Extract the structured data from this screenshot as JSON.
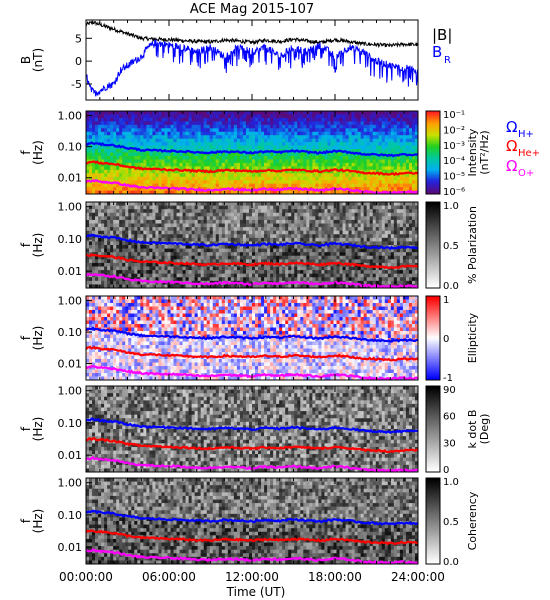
{
  "chart_data": {
    "type": "multi-panel-spectrogram",
    "title": "ACE Mag 2015-107",
    "xlabel": "Time (UT)",
    "x_ticks": [
      "00:00:00",
      "06:00:00",
      "12:00:00",
      "18:00:00",
      "24:00:00"
    ],
    "xlim_hours": [
      0,
      24
    ],
    "panels": [
      {
        "id": "b-field",
        "type": "line",
        "ylabel_main": "B",
        "ylabel_unit": "(nT)",
        "y_ticks": [
          "5",
          "0",
          "-5"
        ],
        "ylim": [
          -8.5,
          9
        ],
        "series": [
          {
            "name": "|B|",
            "color": "#000000",
            "hours": [
              0,
              0.5,
              1,
              1.5,
              2,
              2.5,
              3,
              3.5,
              4,
              5,
              6,
              7,
              8,
              9,
              10,
              11,
              12,
              13,
              14,
              15,
              16,
              17,
              18,
              19,
              20,
              21,
              22,
              23,
              24
            ],
            "values": [
              8,
              8.5,
              8,
              7.5,
              7,
              6.5,
              6,
              5.5,
              5,
              4.8,
              4.7,
              4.5,
              4.3,
              4.2,
              4.6,
              4.4,
              4.1,
              4.6,
              4.3,
              4.8,
              4.4,
              4.1,
              4.7,
              4.3,
              3.8,
              3.6,
              3.4,
              3.7,
              3.6
            ]
          },
          {
            "name": "B",
            "name_sub": "R",
            "color": "#0000ff",
            "hours": [
              0,
              0.3,
              0.6,
              1,
              1.5,
              2,
              2.5,
              3,
              3.5,
              4,
              4.5,
              5,
              6,
              7,
              8,
              9,
              10,
              11,
              12,
              13,
              14,
              15,
              16,
              17,
              18,
              19,
              20,
              21,
              22,
              23,
              24
            ],
            "values": [
              -3,
              -6,
              -7,
              -6.5,
              -5.5,
              -5,
              -2,
              -1,
              0,
              1,
              3,
              4,
              3.5,
              3,
              2,
              3,
              1,
              3,
              2,
              3,
              1,
              3,
              2,
              3.5,
              1,
              3,
              2,
              0,
              -1,
              -1.5,
              -2
            ]
          }
        ]
      },
      {
        "id": "intensity",
        "type": "heatmap",
        "ylabel_main": "f",
        "ylabel_unit": "(Hz)",
        "y_ticks": [
          "1.00",
          "0.10",
          "0.01"
        ],
        "colorbar_title": "Intensity",
        "colorbar_unit": "(nT²/Hz)",
        "colorbar_ticks": [
          "10⁻¹",
          "10⁻²",
          "10⁻³",
          "10⁻⁴",
          "10⁻⁵",
          "10⁻⁶"
        ],
        "colorbar_scale": [
          "#5a0a7a",
          "#2222dd",
          "#00b0f0",
          "#00c8a0",
          "#20d020",
          "#c8e000",
          "#ffa000",
          "#ff2020"
        ]
      },
      {
        "id": "polarization",
        "type": "heatmap",
        "ylabel_main": "f",
        "ylabel_unit": "(Hz)",
        "y_ticks": [
          "1.00",
          "0.10",
          "0.01"
        ],
        "colorbar_title": "% Polarization",
        "colorbar_ticks": [
          "1.0",
          "0.5",
          "0.0"
        ],
        "colorbar_scale": [
          "#ffffff",
          "#000000"
        ]
      },
      {
        "id": "ellipticity",
        "type": "heatmap",
        "ylabel_main": "f",
        "ylabel_unit": "(Hz)",
        "y_ticks": [
          "1.00",
          "0.10",
          "0.01"
        ],
        "colorbar_title": "Ellipticity",
        "colorbar_ticks": [
          "1",
          "0",
          "-1"
        ],
        "colorbar_scale": [
          "#0000ff",
          "#ffffff",
          "#ff0000"
        ]
      },
      {
        "id": "k-dot-b",
        "type": "heatmap",
        "ylabel_main": "f",
        "ylabel_unit": "(Hz)",
        "y_ticks": [
          "1.00",
          "0.10",
          "0.01"
        ],
        "colorbar_title": "k dot B",
        "colorbar_unit": "(Deg)",
        "colorbar_ticks": [
          "90",
          "60",
          "30",
          "0"
        ],
        "colorbar_scale": [
          "#ffffff",
          "#000000"
        ]
      },
      {
        "id": "coherency",
        "type": "heatmap",
        "ylabel_main": "f",
        "ylabel_unit": "(Hz)",
        "y_ticks": [
          "1.00",
          "0.10",
          "0.01"
        ],
        "colorbar_title": "Coherency",
        "colorbar_ticks": [
          "1.0",
          "0.5",
          "0.0"
        ],
        "colorbar_scale": [
          "#ffffff",
          "#000000"
        ]
      }
    ],
    "gyrofrequency_curves": {
      "hours": [
        0,
        0.5,
        1,
        1.5,
        2,
        2.5,
        3,
        3.5,
        4,
        5,
        6,
        7,
        8,
        9,
        10,
        11,
        12,
        13,
        14,
        15,
        16,
        17,
        18,
        19,
        20,
        21,
        22,
        23,
        24
      ],
      "series": [
        {
          "label": "Ω",
          "sub": "H+",
          "color": "#0000ff",
          "values": [
            0.12,
            0.13,
            0.12,
            0.115,
            0.11,
            0.1,
            0.09,
            0.085,
            0.078,
            0.075,
            0.073,
            0.07,
            0.066,
            0.064,
            0.07,
            0.067,
            0.063,
            0.07,
            0.066,
            0.073,
            0.067,
            0.063,
            0.072,
            0.066,
            0.058,
            0.055,
            0.052,
            0.056,
            0.055
          ]
        },
        {
          "label": "Ω",
          "sub": "He+",
          "color": "#ff0000",
          "values": [
            0.03,
            0.0325,
            0.03,
            0.029,
            0.0275,
            0.025,
            0.0225,
            0.021,
            0.0195,
            0.019,
            0.018,
            0.0175,
            0.0165,
            0.016,
            0.0175,
            0.017,
            0.016,
            0.0175,
            0.0165,
            0.018,
            0.017,
            0.016,
            0.018,
            0.0165,
            0.0145,
            0.014,
            0.013,
            0.014,
            0.014
          ]
        },
        {
          "label": "Ω",
          "sub": "O+",
          "color": "#ff00ff",
          "values": [
            0.0075,
            0.0081,
            0.0075,
            0.0072,
            0.0069,
            0.0063,
            0.0056,
            0.0053,
            0.0049,
            0.0047,
            0.0046,
            0.0044,
            0.0041,
            0.004,
            0.0044,
            0.0042,
            0.0039,
            0.0044,
            0.0041,
            0.0045,
            0.0042,
            0.0039,
            0.0045,
            0.0041,
            0.0036,
            0.0034,
            0.0033,
            0.0035,
            0.0034
          ]
        }
      ]
    }
  }
}
